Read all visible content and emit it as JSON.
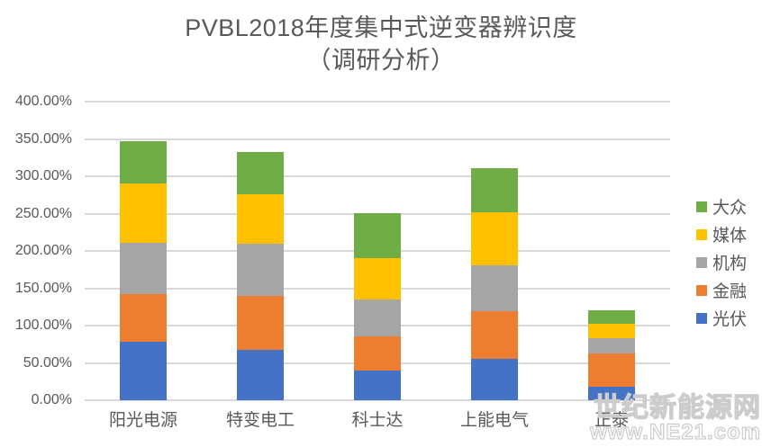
{
  "title": {
    "line1": "PVBL2018年度集中式逆变器辨识度",
    "line2": "（调研分析）"
  },
  "watermark": {
    "line1": "世纪新能源网",
    "line2": "www.NE21.com"
  },
  "chart_data": {
    "type": "bar",
    "stacked": true,
    "title": "PVBL2018年度集中式逆变器辨识度（调研分析）",
    "categories": [
      "阳光电源",
      "特变电工",
      "科士达",
      "上能电气",
      "正泰"
    ],
    "series": [
      {
        "name": "光伏",
        "color": "#4472C4",
        "values": [
          78,
          67,
          40,
          56,
          18
        ]
      },
      {
        "name": "金融",
        "color": "#ED7D31",
        "values": [
          64,
          73,
          45,
          63,
          45
        ]
      },
      {
        "name": "机构",
        "color": "#A5A5A5",
        "values": [
          69,
          70,
          50,
          62,
          20
        ]
      },
      {
        "name": "媒体",
        "color": "#FFC000",
        "values": [
          79,
          66,
          55,
          71,
          19
        ]
      },
      {
        "name": "大众",
        "color": "#70AD47",
        "values": [
          57,
          56,
          61,
          59,
          18
        ]
      }
    ],
    "totals": [
      347,
      332,
      251,
      311,
      120
    ],
    "xlabel": "",
    "ylabel": "",
    "ylim": [
      0,
      400
    ],
    "y_tick_labels": [
      "400.00%",
      "350.00%",
      "300.00%",
      "250.00%",
      "200.00%",
      "150.00%",
      "100.00%",
      "50.00%",
      "0.00%"
    ],
    "grid": true,
    "legend_position": "right",
    "legend_order_top_to_bottom": [
      "大众",
      "媒体",
      "机构",
      "金融",
      "光伏"
    ],
    "styles": {
      "text_color": "#595959",
      "grid_color": "#D9D9D9",
      "background": "#FFFFFF"
    }
  }
}
